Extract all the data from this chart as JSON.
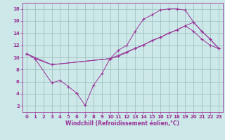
{
  "background_color": "#cce8e8",
  "line_color": "#993399",
  "grid_color": "#99bbbb",
  "xlabel": "Windchill (Refroidissement éolien,°C)",
  "xlim": [
    -0.5,
    23.5
  ],
  "ylim": [
    1,
    19
  ],
  "xticks": [
    0,
    1,
    2,
    3,
    4,
    5,
    6,
    7,
    8,
    9,
    10,
    11,
    12,
    13,
    14,
    15,
    16,
    17,
    18,
    19,
    20,
    21,
    22,
    23
  ],
  "yticks": [
    2,
    4,
    6,
    8,
    10,
    12,
    14,
    16,
    18
  ],
  "curve1_x": [
    0,
    1,
    3,
    4,
    5,
    6,
    7,
    8,
    9,
    10,
    11,
    12,
    13,
    14,
    15,
    16,
    17,
    18,
    19,
    20,
    21,
    22,
    23
  ],
  "curve1_y": [
    10.6,
    9.8,
    5.8,
    6.2,
    5.2,
    4.1,
    2.1,
    5.4,
    7.3,
    9.8,
    11.2,
    12.0,
    14.3,
    16.3,
    17.0,
    17.8,
    18.0,
    18.0,
    17.8,
    15.8,
    14.3,
    13.0,
    11.5
  ],
  "curve2_x": [
    0,
    1,
    3,
    10,
    11,
    12,
    13,
    14,
    15,
    16,
    17,
    18,
    19,
    20,
    21,
    22,
    23
  ],
  "curve2_y": [
    10.6,
    9.8,
    8.8,
    9.8,
    10.2,
    10.8,
    11.5,
    12.0,
    12.8,
    13.3,
    14.0,
    14.5,
    15.2,
    15.8,
    14.3,
    13.0,
    11.5
  ],
  "curve3_x": [
    0,
    3,
    10,
    13,
    16,
    19,
    20,
    21,
    22,
    23
  ],
  "curve3_y": [
    10.6,
    8.8,
    9.8,
    11.5,
    13.3,
    15.2,
    14.3,
    13.0,
    12.0,
    11.5
  ],
  "lw": 0.7,
  "ms": 2.5,
  "xlabel_fontsize": 5.5,
  "tick_fontsize": 5,
  "xlabel_color": "#993399",
  "tick_color": "#993399"
}
